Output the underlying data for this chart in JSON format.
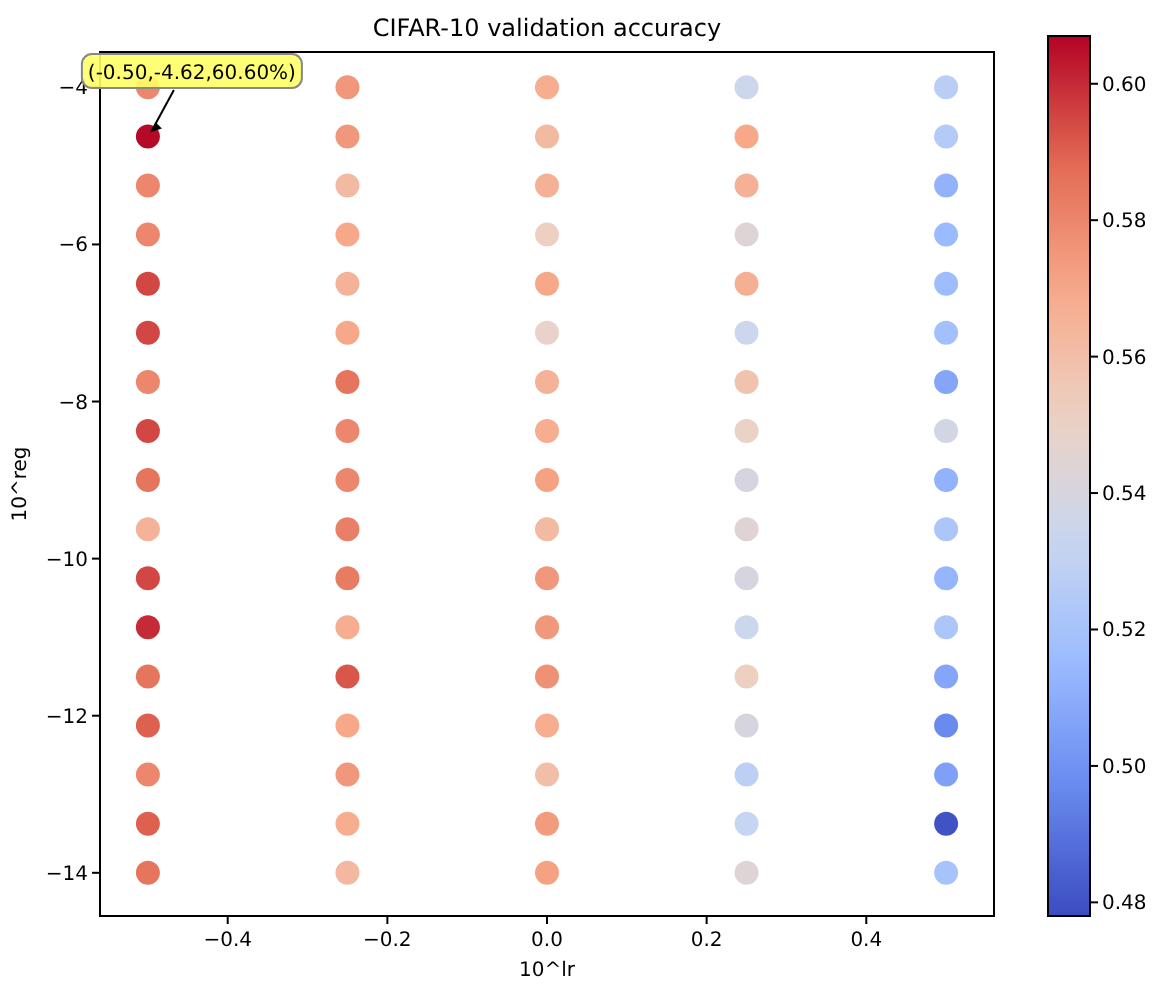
{
  "chart_data": {
    "type": "scatter",
    "title": "CIFAR-10 validation accuracy",
    "xlabel": "10^lr",
    "ylabel": "10^reg",
    "marker": "circle",
    "x": [
      -0.5,
      -0.5,
      -0.5,
      -0.5,
      -0.5,
      -0.5,
      -0.5,
      -0.5,
      -0.5,
      -0.5,
      -0.5,
      -0.5,
      -0.5,
      -0.5,
      -0.5,
      -0.5,
      -0.5,
      -0.25,
      -0.25,
      -0.25,
      -0.25,
      -0.25,
      -0.25,
      -0.25,
      -0.25,
      -0.25,
      -0.25,
      -0.25,
      -0.25,
      -0.25,
      -0.25,
      -0.25,
      -0.25,
      -0.25,
      0,
      0,
      0,
      0,
      0,
      0,
      0,
      0,
      0,
      0,
      0,
      0,
      0,
      0,
      0,
      0,
      0,
      0.25,
      0.25,
      0.25,
      0.25,
      0.25,
      0.25,
      0.25,
      0.25,
      0.25,
      0.25,
      0.25,
      0.25,
      0.25,
      0.25,
      0.25,
      0.25,
      0.25,
      0.5,
      0.5,
      0.5,
      0.5,
      0.5,
      0.5,
      0.5,
      0.5,
      0.5,
      0.5,
      0.5,
      0.5,
      0.5,
      0.5,
      0.5,
      0.5,
      0.5
    ],
    "values": [
      -4,
      -4.625,
      -5.25,
      -5.875,
      -6.5,
      -7.125,
      -7.75,
      -8.375,
      -9,
      -9.625,
      -10.25,
      -10.875,
      -11.5,
      -12.125,
      -12.75,
      -13.375,
      -14,
      -4,
      -4.625,
      -5.25,
      -5.875,
      -6.5,
      -7.125,
      -7.75,
      -8.375,
      -9,
      -9.625,
      -10.25,
      -10.875,
      -11.5,
      -12.125,
      -12.75,
      -13.375,
      -14,
      -4,
      -4.625,
      -5.25,
      -5.875,
      -6.5,
      -7.125,
      -7.75,
      -8.375,
      -9,
      -9.625,
      -10.25,
      -10.875,
      -11.5,
      -12.125,
      -12.75,
      -13.375,
      -14,
      -4,
      -4.625,
      -5.25,
      -5.875,
      -6.5,
      -7.125,
      -7.75,
      -8.375,
      -9,
      -9.625,
      -10.25,
      -10.875,
      -11.5,
      -12.125,
      -12.75,
      -13.375,
      -14,
      -4,
      -4.625,
      -5.25,
      -5.875,
      -6.5,
      -7.125,
      -7.75,
      -8.375,
      -9,
      -9.625,
      -10.25,
      -10.875,
      -11.5,
      -12.125,
      -12.75,
      -13.375,
      -14
    ],
    "cvalues": [
      0.58,
      0.606,
      0.58,
      0.58,
      0.595,
      0.595,
      0.58,
      0.595,
      0.585,
      0.565,
      0.595,
      0.6,
      0.585,
      0.59,
      0.58,
      0.59,
      0.585,
      0.575,
      0.575,
      0.562,
      0.57,
      0.565,
      0.57,
      0.585,
      0.58,
      0.58,
      0.582,
      0.583,
      0.568,
      0.592,
      0.57,
      0.575,
      0.568,
      0.563,
      0.568,
      0.562,
      0.566,
      0.552,
      0.57,
      0.549,
      0.565,
      0.568,
      0.572,
      0.562,
      0.575,
      0.575,
      0.577,
      0.568,
      0.56,
      0.574,
      0.572,
      0.535,
      0.57,
      0.566,
      0.544,
      0.567,
      0.535,
      0.558,
      0.55,
      0.54,
      0.545,
      0.54,
      0.535,
      0.552,
      0.54,
      0.528,
      0.532,
      0.544,
      0.527,
      0.525,
      0.512,
      0.515,
      0.516,
      0.518,
      0.507,
      0.538,
      0.512,
      0.522,
      0.513,
      0.522,
      0.507,
      0.497,
      0.505,
      0.48,
      0.52
    ],
    "xlim": [
      -0.56,
      0.56
    ],
    "xticks": [
      {
        "value": -0.4,
        "label": "−0.4"
      },
      {
        "value": -0.2,
        "label": "−0.2"
      },
      {
        "value": 0,
        "label": "0.0"
      },
      {
        "value": 0.2,
        "label": "0.2"
      },
      {
        "value": 0.4,
        "label": "0.4"
      }
    ],
    "ylim": [
      -14.55,
      -3.55
    ],
    "yticks": [
      {
        "value": -14,
        "label": "−14"
      },
      {
        "value": -12,
        "label": "−12"
      },
      {
        "value": -10,
        "label": "−10"
      },
      {
        "value": -8,
        "label": "−8"
      },
      {
        "value": -6,
        "label": "−6"
      },
      {
        "value": -4,
        "label": "−4"
      }
    ],
    "clim": [
      0.478,
      0.607
    ],
    "cticks": [
      {
        "value": 0.48,
        "label": "0.48"
      },
      {
        "value": 0.5,
        "label": "0.50"
      },
      {
        "value": 0.52,
        "label": "0.52"
      },
      {
        "value": 0.54,
        "label": "0.54"
      },
      {
        "value": 0.56,
        "label": "0.56"
      },
      {
        "value": 0.58,
        "label": "0.58"
      },
      {
        "value": 0.6,
        "label": "0.60"
      }
    ],
    "annotations": [
      {
        "text": "(-0.50,-4.62,60.60%)",
        "x": -0.5,
        "y": -4.625
      }
    ],
    "grid": false
  }
}
